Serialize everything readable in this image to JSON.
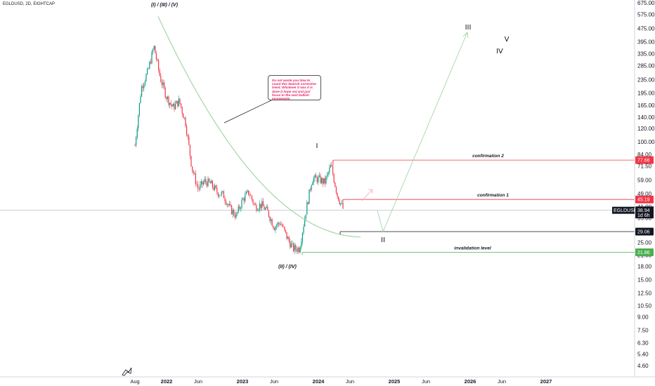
{
  "header": {
    "symbol_info": "EGLDUSD, 2D, EIGHTCAP"
  },
  "note": {
    "text": "Do not waste you time to count this bearish corrective trend. Whatever it was it is done (I hope so) and just focus to the next bullish movements"
  },
  "chart_data": {
    "type": "candlestick",
    "scale": "log",
    "ylim": [
      4.3,
      700
    ],
    "y_ticks": [
      "675.00",
      "575.00",
      "475.00",
      "395.00",
      "335.00",
      "285.00",
      "235.00",
      "195.00",
      "165.00",
      "140.00",
      "120.00",
      "100.00",
      "84.00",
      "71.50",
      "59.00",
      "49.00",
      "41.00",
      "35.00",
      "29.06",
      "25.00",
      "21.00",
      "18.00",
      "15.00",
      "12.50",
      "10.50",
      "9.00",
      "7.50",
      "6.30",
      "5.40",
      "4.60"
    ],
    "x_ticks": [
      "Aug",
      "2022",
      "Jun",
      "2023",
      "Jun",
      "2024",
      "Jun",
      "2025",
      "Jun",
      "2026",
      "Jun",
      "2027"
    ],
    "x_ticks_bold": [
      "2022",
      "2023",
      "2024",
      "2025",
      "2026",
      "2027"
    ],
    "current_price": {
      "value": 38.94,
      "label": "38.94",
      "symbol_tag": "EGLDUSD",
      "countdown": "1d 6h"
    },
    "levels": [
      {
        "name": "confirmation 2",
        "value": 77.66,
        "label": "77.66",
        "color": "#f23645"
      },
      {
        "name": "confirmation 1",
        "value": 45.19,
        "label": "45.19",
        "color": "#f23645"
      },
      {
        "name": "",
        "value": 29.06,
        "label": "29.06",
        "color": "#131722"
      },
      {
        "name": "invalidation level",
        "value": 21.86,
        "label": "21.86",
        "color": "#4caf50"
      }
    ],
    "wave_labels": [
      {
        "text": "(I) / (III) / (V)",
        "style": "italic"
      },
      {
        "text": "(II) / (IV)",
        "style": "italic"
      },
      {
        "text": "I",
        "style": "plain"
      },
      {
        "text": "II",
        "style": "plain"
      },
      {
        "text": "III",
        "style": "plain"
      },
      {
        "text": "IV",
        "style": "plain"
      },
      {
        "text": "V",
        "style": "plain"
      }
    ],
    "candles_approx": [
      {
        "date": "2021-08",
        "close": 95
      },
      {
        "date": "2021-09",
        "close": 210
      },
      {
        "date": "2021-10",
        "close": 260
      },
      {
        "date": "2021-11",
        "close": 370
      },
      {
        "date": "2021-12",
        "close": 240
      },
      {
        "date": "2022-01",
        "close": 185
      },
      {
        "date": "2022-02",
        "close": 160
      },
      {
        "date": "2022-03",
        "close": 175
      },
      {
        "date": "2022-04",
        "close": 130
      },
      {
        "date": "2022-05",
        "close": 70
      },
      {
        "date": "2022-06",
        "close": 52
      },
      {
        "date": "2022-07",
        "close": 58
      },
      {
        "date": "2022-08",
        "close": 56
      },
      {
        "date": "2022-09",
        "close": 50
      },
      {
        "date": "2022-10",
        "close": 48
      },
      {
        "date": "2022-11",
        "close": 40
      },
      {
        "date": "2022-12",
        "close": 36
      },
      {
        "date": "2023-01",
        "close": 45
      },
      {
        "date": "2023-02",
        "close": 50
      },
      {
        "date": "2023-03",
        "close": 41
      },
      {
        "date": "2023-04",
        "close": 42
      },
      {
        "date": "2023-05",
        "close": 38
      },
      {
        "date": "2023-06",
        "close": 31
      },
      {
        "date": "2023-07",
        "close": 33
      },
      {
        "date": "2023-08",
        "close": 27
      },
      {
        "date": "2023-09",
        "close": 23
      },
      {
        "date": "2023-10",
        "close": 23
      },
      {
        "date": "2023-11",
        "close": 38
      },
      {
        "date": "2023-12",
        "close": 60
      },
      {
        "date": "2024-01",
        "close": 60
      },
      {
        "date": "2024-02",
        "close": 57
      },
      {
        "date": "2024-03",
        "close": 72
      },
      {
        "date": "2024-04",
        "close": 48
      },
      {
        "date": "2024-05",
        "close": 38.94
      }
    ]
  }
}
